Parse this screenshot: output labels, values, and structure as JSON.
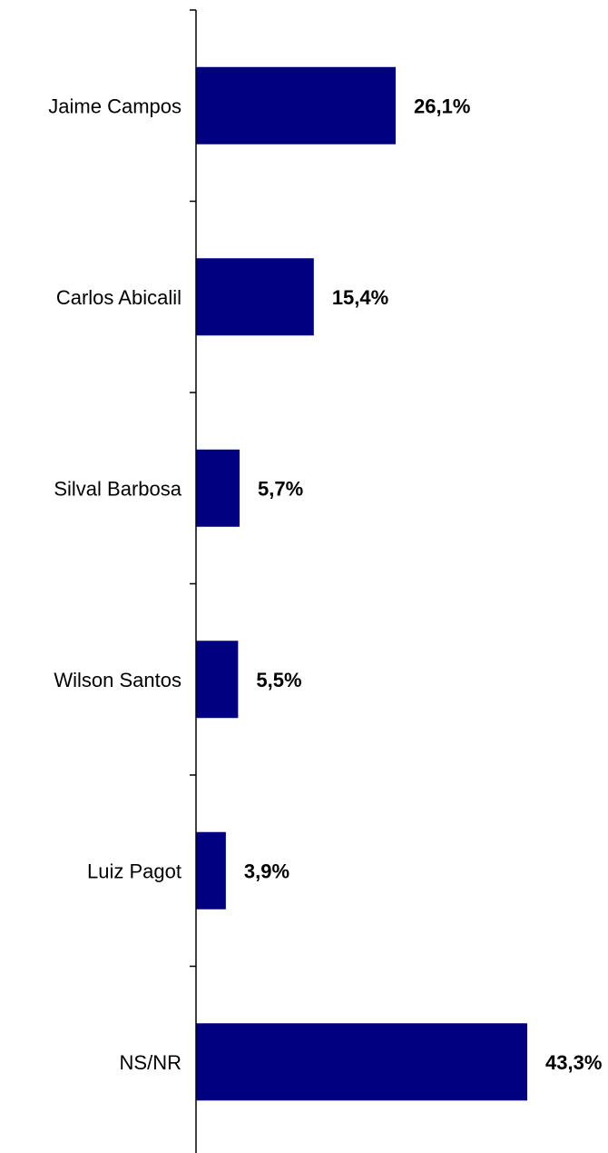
{
  "chart_data": {
    "type": "bar",
    "orientation": "horizontal",
    "categories": [
      "Jaime Campos",
      "Carlos Abicalil",
      "Silval Barbosa",
      "Wilson Santos",
      "Luiz Pagot",
      "NS/NR"
    ],
    "values": [
      26.1,
      15.4,
      5.7,
      5.5,
      3.9,
      43.3
    ],
    "value_labels": [
      "26,1%",
      "15,4%",
      "5,7%",
      "5,5%",
      "3,9%",
      "43,3%"
    ],
    "unit": "%",
    "bar_color": "#000080",
    "xlim": [
      0,
      50
    ],
    "grid": false,
    "legend": "none",
    "title": "",
    "xlabel": "",
    "ylabel": ""
  }
}
